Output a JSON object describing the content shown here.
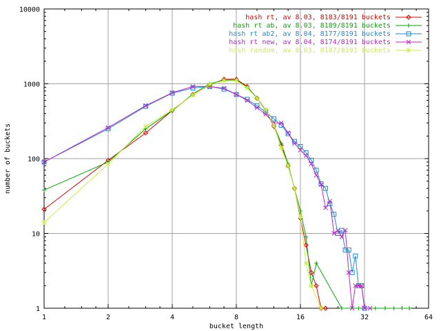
{
  "chart_data": {
    "type": "line",
    "title": "",
    "xlabel": "bucket length",
    "ylabel": "number of buckets",
    "xscale": "log",
    "yscale": "log",
    "xlim": [
      1,
      64
    ],
    "ylim": [
      1,
      10000
    ],
    "grid": true,
    "legend_position": "top-right",
    "x_ticks": [
      {
        "value": 1,
        "label": "1"
      },
      {
        "value": 2,
        "label": "2"
      },
      {
        "value": 4,
        "label": "4"
      },
      {
        "value": 8,
        "label": "8"
      },
      {
        "value": 16,
        "label": "16"
      },
      {
        "value": 32,
        "label": "32"
      },
      {
        "value": 64,
        "label": "64"
      }
    ],
    "y_ticks": [
      {
        "value": 1,
        "label": "1"
      },
      {
        "value": 10,
        "label": "10"
      },
      {
        "value": 100,
        "label": "100"
      },
      {
        "value": 1000,
        "label": "1000"
      },
      {
        "value": 10000,
        "label": "10000"
      }
    ],
    "series": [
      {
        "name": "hash rt, av 8.03, 8183/8191 buckets",
        "color": "#dd0000",
        "marker": "diamond",
        "points": [
          [
            1,
            21
          ],
          [
            2,
            95
          ],
          [
            3,
            220
          ],
          [
            4,
            440
          ],
          [
            5,
            720
          ],
          [
            6,
            960
          ],
          [
            7,
            1150
          ],
          [
            8,
            1150
          ],
          [
            9,
            920
          ],
          [
            10,
            640
          ],
          [
            11,
            440
          ],
          [
            12,
            270
          ],
          [
            13,
            150
          ],
          [
            14,
            80
          ],
          [
            15,
            40
          ],
          [
            16,
            16
          ],
          [
            17,
            7
          ],
          [
            18,
            3
          ],
          [
            19,
            2
          ],
          [
            20,
            1
          ],
          [
            21,
            1
          ]
        ]
      },
      {
        "name": "hash rt ab, av 8.03, 8189/8191 buckets",
        "color": "#00aa00",
        "marker": "plus",
        "points": [
          [
            1,
            38
          ],
          [
            2,
            90
          ],
          [
            3,
            250
          ],
          [
            4,
            440
          ],
          [
            5,
            730
          ],
          [
            6,
            1000
          ],
          [
            7,
            1120
          ],
          [
            8,
            1130
          ],
          [
            9,
            900
          ],
          [
            10,
            650
          ],
          [
            11,
            450
          ],
          [
            12,
            280
          ],
          [
            13,
            160
          ],
          [
            14,
            85
          ],
          [
            15,
            40
          ],
          [
            16,
            20
          ],
          [
            17,
            9
          ],
          [
            18,
            2
          ],
          [
            19,
            4
          ],
          [
            25,
            1
          ],
          [
            30,
            1
          ],
          [
            36,
            1
          ],
          [
            40,
            1
          ],
          [
            44,
            1
          ],
          [
            48,
            1
          ],
          [
            52,
            1
          ]
        ]
      },
      {
        "name": "hash rt ab2, av 8.04, 8177/8191 buckets",
        "color": "#1a8ad0",
        "marker": "square",
        "points": [
          [
            1,
            90
          ],
          [
            2,
            250
          ],
          [
            3,
            500
          ],
          [
            4,
            750
          ],
          [
            5,
            880
          ],
          [
            6,
            920
          ],
          [
            7,
            850
          ],
          [
            8,
            720
          ],
          [
            9,
            620
          ],
          [
            10,
            510
          ],
          [
            11,
            420
          ],
          [
            12,
            340
          ],
          [
            13,
            280
          ],
          [
            14,
            215
          ],
          [
            15,
            170
          ],
          [
            16,
            145
          ],
          [
            17,
            120
          ],
          [
            18,
            95
          ],
          [
            19,
            70
          ],
          [
            20,
            46
          ],
          [
            21,
            40
          ],
          [
            22,
            25
          ],
          [
            23,
            18
          ],
          [
            24,
            10
          ],
          [
            25,
            11
          ],
          [
            26,
            6
          ],
          [
            27,
            6
          ],
          [
            28,
            3
          ],
          [
            29,
            5
          ],
          [
            30,
            2
          ],
          [
            31,
            2
          ],
          [
            32,
            1
          ]
        ]
      },
      {
        "name": "hash rt new, av 8.04, 8174/8191 buckets",
        "color": "#bb22cc",
        "marker": "cross",
        "points": [
          [
            1,
            90
          ],
          [
            2,
            260
          ],
          [
            3,
            510
          ],
          [
            4,
            760
          ],
          [
            5,
            920
          ],
          [
            6,
            920
          ],
          [
            7,
            870
          ],
          [
            8,
            720
          ],
          [
            9,
            600
          ],
          [
            10,
            480
          ],
          [
            11,
            390
          ],
          [
            12,
            300
          ],
          [
            13,
            300
          ],
          [
            14,
            220
          ],
          [
            15,
            160
          ],
          [
            16,
            130
          ],
          [
            17,
            110
          ],
          [
            18,
            85
          ],
          [
            19,
            60
          ],
          [
            20,
            45
          ],
          [
            21,
            22
          ],
          [
            22,
            27
          ],
          [
            23,
            10
          ],
          [
            24,
            11
          ],
          [
            25,
            9
          ],
          [
            26,
            11
          ],
          [
            27,
            3
          ],
          [
            28,
            1
          ],
          [
            29,
            2
          ],
          [
            30,
            2
          ],
          [
            31,
            2
          ],
          [
            32,
            1
          ],
          [
            34,
            1
          ]
        ]
      },
      {
        "name": "hash random, av 8.03, 8187/8191 buckets",
        "color": "#ccee44",
        "marker": "star",
        "points": [
          [
            1,
            14
          ],
          [
            2,
            85
          ],
          [
            3,
            270
          ],
          [
            4,
            450
          ],
          [
            5,
            710
          ],
          [
            6,
            980
          ],
          [
            7,
            1100
          ],
          [
            8,
            1100
          ],
          [
            9,
            880
          ],
          [
            10,
            640
          ],
          [
            11,
            450
          ],
          [
            12,
            280
          ],
          [
            13,
            140
          ],
          [
            14,
            80
          ],
          [
            15,
            40
          ],
          [
            16,
            17
          ],
          [
            17,
            4
          ],
          [
            18,
            2
          ],
          [
            20,
            1
          ]
        ]
      }
    ]
  }
}
